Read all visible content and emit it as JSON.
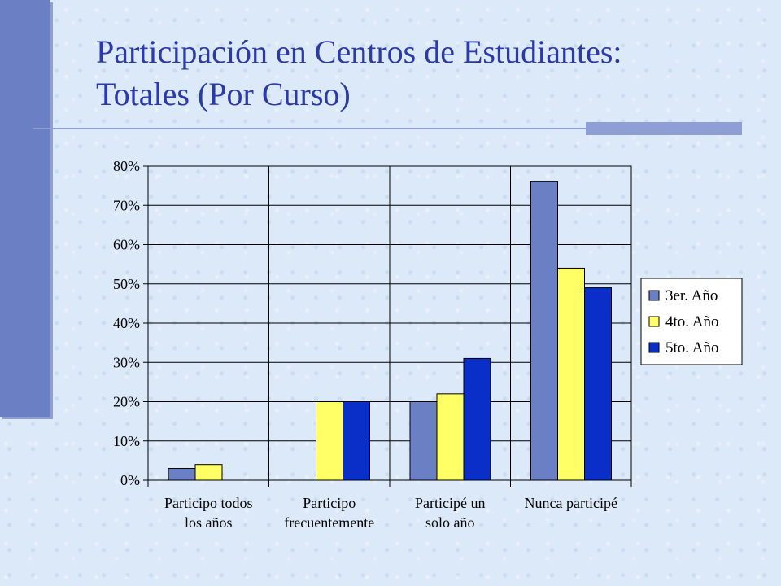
{
  "slide": {
    "title_line1": "Participación en Centros de Estudiantes:",
    "title_line2": "Totales (Por Curso)"
  },
  "chart_data": {
    "type": "bar",
    "categories": [
      [
        "Participo todos",
        "los años"
      ],
      [
        "Participo",
        "frecuentemente"
      ],
      [
        "Participé un",
        "solo año"
      ],
      [
        "Nunca participé"
      ]
    ],
    "series": [
      {
        "name": "3er. Año",
        "color": "#6b7fc4",
        "values": [
          3,
          0,
          20,
          76
        ]
      },
      {
        "name": "4to. Año",
        "color": "#ffff66",
        "values": [
          4,
          20,
          22,
          54
        ]
      },
      {
        "name": "5to. Año",
        "color": "#0a2fc8",
        "values": [
          0,
          20,
          31,
          49
        ]
      }
    ],
    "ylim": [
      0,
      80
    ],
    "yticks": [
      "0%",
      "10%",
      "20%",
      "30%",
      "40%",
      "50%",
      "60%",
      "70%",
      "80%"
    ],
    "grid": "vertical category separators",
    "legend_position": "right"
  }
}
